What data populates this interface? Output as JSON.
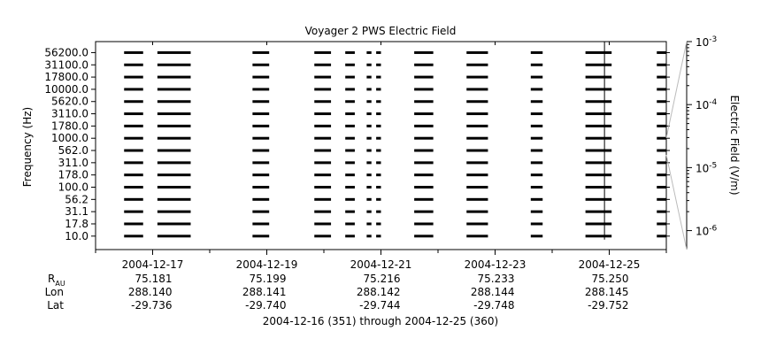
{
  "chart_data": {
    "type": "line",
    "title": "Voyager 2 PWS Electric Field",
    "ylabel": "Frequency (Hz)",
    "colorbar_label": "Electric Field (V/m)",
    "colorbar_ticks": [
      {
        "base": "10",
        "exp": "-3",
        "value": 0.001
      },
      {
        "base": "10",
        "exp": "-4",
        "value": 0.0001
      },
      {
        "base": "10",
        "exp": "-5",
        "value": 1e-05
      },
      {
        "base": "10",
        "exp": "-6",
        "value": 1e-06
      }
    ],
    "colorbar_range": [
      5e-07,
      0.001
    ],
    "channels": [
      "56200.0",
      "31100.0",
      "17800.0",
      "10000.0",
      "5620.0",
      "3110.0",
      "1780.0",
      "1000.0",
      "562.0",
      "311.0",
      "178.0",
      "100.0",
      "56.2",
      "31.1",
      "17.8",
      "10.0"
    ],
    "x_range": [
      "2004-12-16",
      "2004-12-26"
    ],
    "x_ticks": [
      "2004-12-17",
      "2004-12-19",
      "2004-12-21",
      "2004-12-23",
      "2004-12-25"
    ],
    "x_minor_ticks": [
      "2004-12-16",
      "2004-12-18",
      "2004-12-20",
      "2004-12-22",
      "2004-12-24",
      "2004-12-26"
    ],
    "coverage": [
      [
        "2004-12-16T12:00",
        "2004-12-16T20:00"
      ],
      [
        "2004-12-17T02:00",
        "2004-12-17T16:00"
      ],
      [
        "2004-12-18T18:00",
        "2004-12-19T01:00"
      ],
      [
        "2004-12-19T20:00",
        "2004-12-20T03:00"
      ],
      [
        "2004-12-20T09:00",
        "2004-12-20T13:00"
      ],
      [
        "2004-12-20T18:00",
        "2004-12-20T20:00"
      ],
      [
        "2004-12-20T22:00",
        "2004-12-21T00:00"
      ],
      [
        "2004-12-21T14:00",
        "2004-12-21T22:00"
      ],
      [
        "2004-12-22T12:00",
        "2004-12-22T21:00"
      ],
      [
        "2004-12-23T15:00",
        "2004-12-23T20:00"
      ],
      [
        "2004-12-24T14:00",
        "2004-12-25T01:00"
      ],
      [
        "2004-12-25T20:00",
        "2004-12-26T00:00"
      ]
    ],
    "spikes": [
      {
        "x": "2004-12-24T22:00",
        "top_channel": "56200.0"
      }
    ],
    "ephemeris_labels": {
      "r": "R",
      "r_sub": "AU",
      "lon": "Lon",
      "lat": "Lat"
    },
    "ephemeris": [
      {
        "r": "75.181",
        "lon": "288.140",
        "lat": "-29.736"
      },
      {
        "r": "75.199",
        "lon": "288.141",
        "lat": "-29.740"
      },
      {
        "r": "75.216",
        "lon": "288.142",
        "lat": "-29.744"
      },
      {
        "r": "75.233",
        "lon": "288.144",
        "lat": "-29.748"
      },
      {
        "r": "75.250",
        "lon": "288.145",
        "lat": "-29.752"
      }
    ],
    "footer": "2004-12-16 (351) through 2004-12-25 (360)"
  }
}
